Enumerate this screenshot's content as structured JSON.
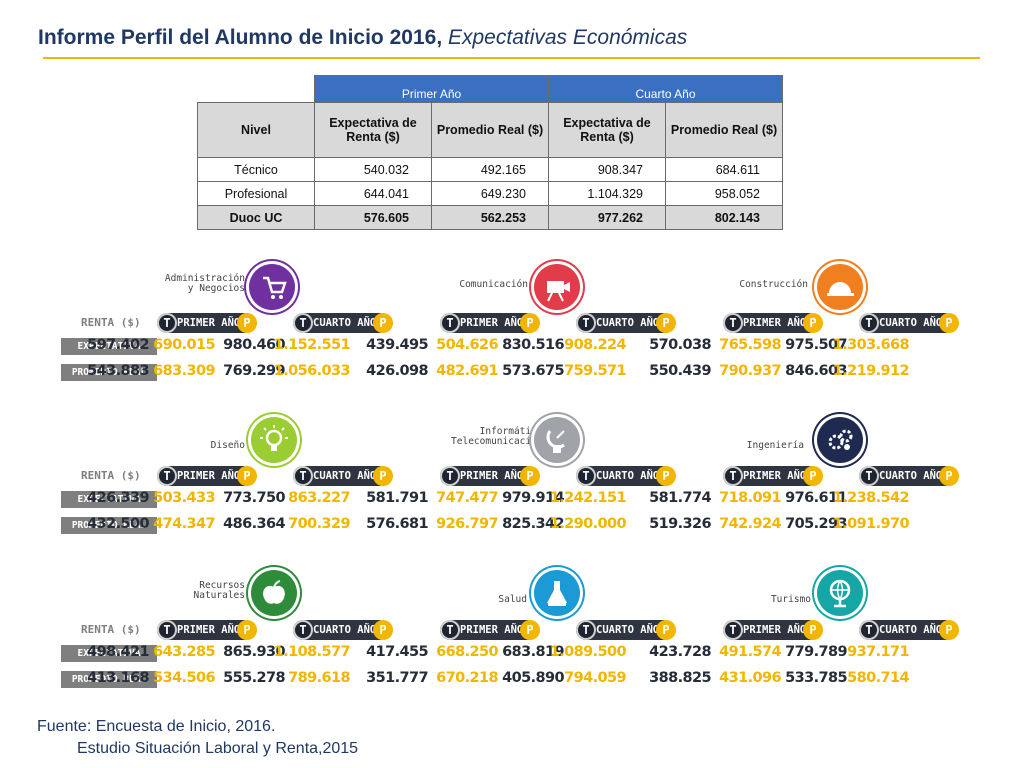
{
  "title": {
    "main": "Informe Perfil del Alumno de Inicio 2016,",
    "italic": "Expectativas Económicas"
  },
  "summary_table": {
    "groups": [
      "Primer Año",
      "Cuarto Año"
    ],
    "headers": [
      "Nivel",
      "Expectativa de Renta ($)",
      "Promedio Real ($)",
      "Expectativa de Renta ($)",
      "Promedio Real ($)"
    ],
    "rows": [
      {
        "nivel": "Técnico",
        "values": [
          "540.032",
          "492.165",
          "908.347",
          "684.611"
        ]
      },
      {
        "nivel": "Profesional",
        "values": [
          "644.041",
          "649.230",
          "1.104.329",
          "958.052"
        ]
      },
      {
        "nivel": "Duoc UC",
        "values": [
          "576.605",
          "562.253",
          "977.262",
          "802.143"
        ]
      }
    ]
  },
  "labels": {
    "renta": "RENTA ($)",
    "primer": "PRIMER AÑO",
    "cuarto": "CUARTO AÑO",
    "expectativa": "EXPECTATIVA",
    "promedio": "PROMEDIO REAL"
  },
  "categories": [
    {
      "name": "Administración\ny Negocios",
      "icon": "cart-icon",
      "color": "#7030a0",
      "exp": [
        "597.402",
        "690.015",
        "980.460",
        "1.152.551"
      ],
      "real": [
        "543.883",
        "683.309",
        "769.299",
        "1.056.033"
      ]
    },
    {
      "name": "Comunicación",
      "icon": "camera-icon",
      "color": "#e03c4a",
      "exp": [
        "439.495",
        "504.626",
        "830.516",
        "908.224"
      ],
      "real": [
        "426.098",
        "482.691",
        "573.675",
        "759.571"
      ]
    },
    {
      "name": "Construcción",
      "icon": "helmet-icon",
      "color": "#f07f1f",
      "exp": [
        "570.038",
        "765.598",
        "975.507",
        "1.303.668"
      ],
      "real": [
        "550.439",
        "790.937",
        "846.603",
        "1.219.912"
      ]
    },
    {
      "name": "Diseño",
      "icon": "lightbulb-icon",
      "color": "#9acd32",
      "exp": [
        "426.339",
        "503.433",
        "773.750",
        "863.227"
      ],
      "real": [
        "432.500",
        "474.347",
        "486.364",
        "700.329"
      ]
    },
    {
      "name": "Informática y\nTelecomunicaciones",
      "icon": "satellite-icon",
      "color": "#a0a4a8",
      "exp": [
        "581.791",
        "747.477",
        "979.914",
        "1.242.151"
      ],
      "real": [
        "576.681",
        "926.797",
        "825.342",
        "1.290.000"
      ]
    },
    {
      "name": "Ingeniería",
      "icon": "gears-icon",
      "color": "#1f2a50",
      "exp": [
        "581.774",
        "718.091",
        "976.611",
        "1.238.542"
      ],
      "real": [
        "519.326",
        "742.924",
        "705.293",
        "1.091.970"
      ]
    },
    {
      "name": "Recursos\nNaturales",
      "icon": "apple-icon",
      "color": "#2e8b3a",
      "exp": [
        "498.421",
        "643.285",
        "865.930",
        "1.108.577"
      ],
      "real": [
        "413.168",
        "534.506",
        "555.278",
        "789.618"
      ]
    },
    {
      "name": "Salud",
      "icon": "flask-icon",
      "color": "#1c9ad6",
      "exp": [
        "417.455",
        "668.250",
        "683.819",
        "1.089.500"
      ],
      "real": [
        "351.777",
        "670.218",
        "405.890",
        "794.059"
      ]
    },
    {
      "name": "Turismo",
      "icon": "globe-icon",
      "color": "#17a6a6",
      "exp": [
        "423.728",
        "491.574",
        "779.789",
        "937.171"
      ],
      "real": [
        "388.825",
        "431.096",
        "533.785",
        "580.714"
      ]
    }
  ],
  "source": {
    "line1": "Fuente: Encuesta de Inicio, 2016.",
    "line2": "Estudio Situación Laboral y Renta,2015"
  }
}
